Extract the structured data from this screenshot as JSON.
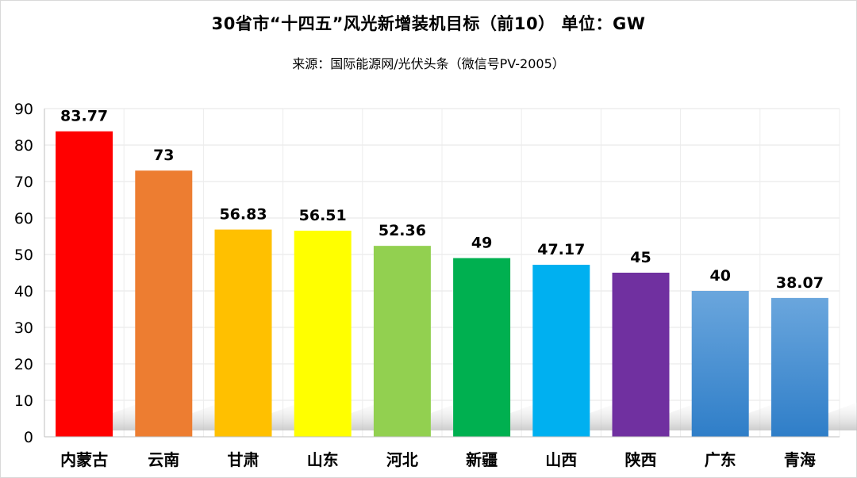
{
  "chart_data": {
    "type": "bar",
    "title": "30省市“十四五”风光新增装机目标（前10） 单位：GW",
    "subtitle": "来源：国际能源网/光伏头条（微信号PV-2005）",
    "categories": [
      "内蒙古",
      "云南",
      "甘肃",
      "山东",
      "河北",
      "新疆",
      "山西",
      "陕西",
      "广东",
      "青海"
    ],
    "values": [
      83.77,
      73,
      56.83,
      56.51,
      52.36,
      49,
      47.17,
      45,
      40,
      38.07
    ],
    "value_labels": [
      "83.77",
      "73",
      "56.83",
      "56.51",
      "52.36",
      "49",
      "47.17",
      "45",
      "40",
      "38.07"
    ],
    "colors": [
      "#ff0000",
      "#ed7d31",
      "#ffc000",
      "#ffff00",
      "#92d050",
      "#00b050",
      "#00b0f0",
      "#7030a0",
      "#5b9bd5",
      "#5b9bd5"
    ],
    "ylim": [
      0,
      90
    ],
    "yticks": [
      0,
      10,
      20,
      30,
      40,
      50,
      60,
      70,
      80,
      90
    ],
    "xlabel": "",
    "ylabel": "",
    "grid": true
  }
}
